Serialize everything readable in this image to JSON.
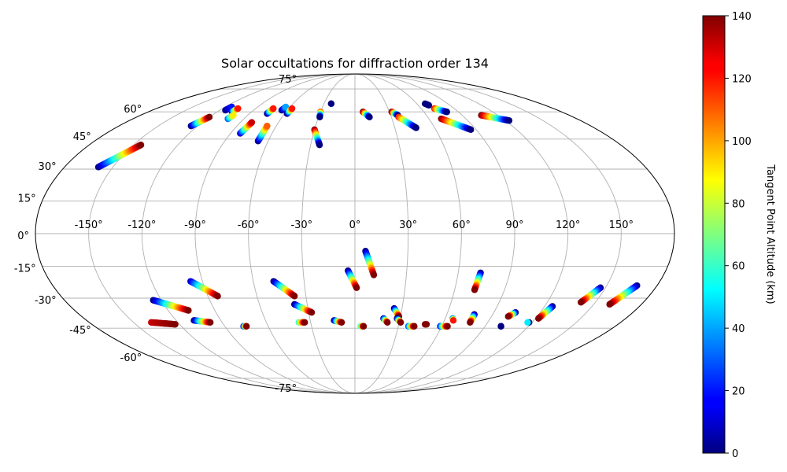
{
  "chart_data": {
    "type": "scatter",
    "projection": "mollweide",
    "title": "Solar occultations for diffraction order 134",
    "lon_ticks": [
      -150,
      -120,
      -90,
      -60,
      -30,
      0,
      30,
      60,
      90,
      120,
      150
    ],
    "lon_tick_labels": [
      "-150°",
      "-120°",
      "-90°",
      "-60°",
      "-30°",
      "0°",
      "30°",
      "60°",
      "90°",
      "120°",
      "150°"
    ],
    "lat_ticks": [
      75,
      60,
      45,
      30,
      15,
      0,
      -15,
      -30,
      -45,
      -60,
      -75
    ],
    "lat_tick_labels": [
      "75°",
      "60°",
      "45°",
      "30°",
      "15°",
      "0°",
      "-15°",
      "-30°",
      "-45°",
      "-60°",
      "-75°"
    ],
    "colorbar": {
      "label": "Tangent Point Altitude (km)",
      "colormap": "jet",
      "range": [
        0,
        140
      ],
      "ticks": [
        0,
        20,
        40,
        60,
        80,
        100,
        120,
        140
      ],
      "tick_labels": [
        "0",
        "20",
        "40",
        "60",
        "80",
        "100",
        "120",
        "140"
      ]
    },
    "occultations": [
      {
        "start": [
          -159,
          31
        ],
        "end": [
          -145,
          42
        ],
        "alt_start": 0,
        "alt_end": 140
      },
      {
        "start": [
          -125,
          52
        ],
        "end": [
          -120,
          57
        ],
        "alt_start": 0,
        "alt_end": 140
      },
      {
        "start": [
          -115,
          61
        ],
        "end": [
          -114,
          63
        ],
        "alt_start": 0,
        "alt_end": 20
      },
      {
        "start": [
          -107,
          60
        ],
        "end": [
          -106,
          62
        ],
        "alt_start": 20,
        "alt_end": 120
      },
      {
        "start": [
          -103,
          56
        ],
        "end": [
          -102,
          58
        ],
        "alt_start": 30,
        "alt_end": 90
      },
      {
        "start": [
          -83,
          48
        ],
        "end": [
          -81,
          54
        ],
        "alt_start": 10,
        "alt_end": 130
      },
      {
        "start": [
          -75,
          59
        ],
        "end": [
          -74,
          62
        ],
        "alt_start": 0,
        "alt_end": 120
      },
      {
        "start": [
          -67,
          44
        ],
        "end": [
          -67,
          52
        ],
        "alt_start": 0,
        "alt_end": 110
      },
      {
        "start": [
          -65,
          61
        ],
        "end": [
          -64,
          63
        ],
        "alt_start": 0,
        "alt_end": 40
      },
      {
        "start": [
          -58,
          59
        ],
        "end": [
          -57,
          62
        ],
        "alt_start": 0,
        "alt_end": 120
      },
      {
        "start": [
          -30,
          50
        ],
        "end": [
          -24,
          42
        ],
        "alt_start": 140,
        "alt_end": 0
      },
      {
        "start": [
          -30,
          60
        ],
        "end": [
          -29,
          57
        ],
        "alt_start": 110,
        "alt_end": 0
      },
      {
        "start": [
          -23,
          65
        ],
        "end": [
          -23,
          65
        ],
        "alt_start": 0,
        "alt_end": 0
      },
      {
        "start": [
          7,
          60
        ],
        "end": [
          12,
          57
        ],
        "alt_start": 140,
        "alt_end": 0
      },
      {
        "start": [
          32,
          60
        ],
        "end": [
          36,
          58
        ],
        "alt_start": 140,
        "alt_end": 0
      },
      {
        "start": [
          36,
          57
        ],
        "end": [
          46,
          51
        ],
        "alt_start": 120,
        "alt_end": 0
      },
      {
        "start": [
          68,
          65
        ],
        "end": [
          70,
          64
        ],
        "alt_start": 0,
        "alt_end": 0
      },
      {
        "start": [
          72,
          62
        ],
        "end": [
          80,
          60
        ],
        "alt_start": 120,
        "alt_end": 0
      },
      {
        "start": [
          70,
          56
        ],
        "end": [
          86,
          50
        ],
        "alt_start": 140,
        "alt_end": 0
      },
      {
        "start": [
          106,
          58
        ],
        "end": [
          123,
          55
        ],
        "alt_start": 140,
        "alt_end": 0
      },
      {
        "start": [
          6,
          -8
        ],
        "end": [
          11,
          -19
        ],
        "alt_start": 0,
        "alt_end": 140
      },
      {
        "start": [
          -4,
          -17
        ],
        "end": [
          1,
          -25
        ],
        "alt_start": 0,
        "alt_end": 140
      },
      {
        "start": [
          -97,
          -22
        ],
        "end": [
          -84,
          -29
        ],
        "alt_start": 10,
        "alt_end": 140
      },
      {
        "start": [
          -125,
          -31
        ],
        "end": [
          -107,
          -36
        ],
        "alt_start": 0,
        "alt_end": 140
      },
      {
        "start": [
          -138,
          -42
        ],
        "end": [
          -123,
          -43
        ],
        "alt_start": 130,
        "alt_end": 140
      },
      {
        "start": [
          -108,
          -41
        ],
        "end": [
          -98,
          -42
        ],
        "alt_start": 0,
        "alt_end": 140
      },
      {
        "start": [
          -48,
          -22
        ],
        "end": [
          -37,
          -29
        ],
        "alt_start": 0,
        "alt_end": 140
      },
      {
        "start": [
          -38,
          -33
        ],
        "end": [
          -28,
          -37
        ],
        "alt_start": 0,
        "alt_end": 140
      },
      {
        "start": [
          -77,
          -44
        ],
        "end": [
          -75,
          -44
        ],
        "alt_start": 20,
        "alt_end": 140
      },
      {
        "start": [
          -38,
          -42
        ],
        "end": [
          -34,
          -42
        ],
        "alt_start": 60,
        "alt_end": 140
      },
      {
        "start": [
          -14,
          -41
        ],
        "end": [
          -9,
          -42
        ],
        "alt_start": 0,
        "alt_end": 140
      },
      {
        "start": [
          4,
          -44
        ],
        "end": [
          6,
          -44
        ],
        "alt_start": 60,
        "alt_end": 140
      },
      {
        "start": [
          25,
          -35
        ],
        "end": [
          29,
          -39
        ],
        "alt_start": 0,
        "alt_end": 140
      },
      {
        "start": [
          19,
          -40
        ],
        "end": [
          22,
          -42
        ],
        "alt_start": 10,
        "alt_end": 140
      },
      {
        "start": [
          28,
          -40
        ],
        "end": [
          31,
          -42
        ],
        "alt_start": 0,
        "alt_end": 140
      },
      {
        "start": [
          37,
          -44
        ],
        "end": [
          41,
          -44
        ],
        "alt_start": 30,
        "alt_end": 140
      },
      {
        "start": [
          48,
          -43
        ],
        "end": [
          49,
          -43
        ],
        "alt_start": 140,
        "alt_end": 140
      },
      {
        "start": [
          59,
          -44
        ],
        "end": [
          64,
          -44
        ],
        "alt_start": 20,
        "alt_end": 140
      },
      {
        "start": [
          65,
          -40
        ],
        "end": [
          66,
          -41
        ],
        "alt_start": 40,
        "alt_end": 120
      },
      {
        "start": [
          78,
          -38
        ],
        "end": [
          78,
          -42
        ],
        "alt_start": 0,
        "alt_end": 140
      },
      {
        "start": [
          73,
          -18
        ],
        "end": [
          72,
          -26
        ],
        "alt_start": 0,
        "alt_end": 140
      },
      {
        "start": [
          104,
          -37
        ],
        "end": [
          101,
          -39
        ],
        "alt_start": 0,
        "alt_end": 140
      },
      {
        "start": [
          101,
          -44
        ],
        "end": [
          101,
          -44
        ],
        "alt_start": 0,
        "alt_end": 0
      },
      {
        "start": [
          125,
          -34
        ],
        "end": [
          122,
          -40
        ],
        "alt_start": 0,
        "alt_end": 140
      },
      {
        "start": [
          118,
          -42
        ],
        "end": [
          117,
          -42
        ],
        "alt_start": 0,
        "alt_end": 50
      },
      {
        "start": [
          147,
          -25
        ],
        "end": [
          141,
          -32
        ],
        "alt_start": 0,
        "alt_end": 140
      },
      {
        "start": [
          168,
          -24
        ],
        "end": [
          160,
          -33
        ],
        "alt_start": 0,
        "alt_end": 140
      }
    ]
  }
}
